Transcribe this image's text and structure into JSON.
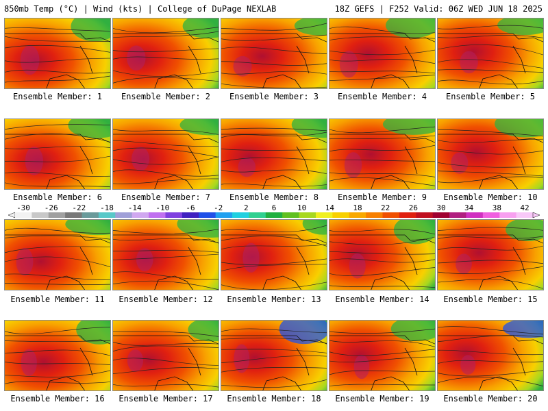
{
  "header": {
    "left": "850mb Temp (°C) | Wind (kts) | College of DuPage NEXLAB",
    "right": "18Z GEFS | F252 Valid: 06Z WED JUN 18 2025"
  },
  "panels": [
    {
      "label": "Ensemble Member: 1"
    },
    {
      "label": "Ensemble Member: 2"
    },
    {
      "label": "Ensemble Member: 3"
    },
    {
      "label": "Ensemble Member: 4"
    },
    {
      "label": "Ensemble Member: 5"
    },
    {
      "label": "Ensemble Member: 6"
    },
    {
      "label": "Ensemble Member: 7"
    },
    {
      "label": "Ensemble Member: 8"
    },
    {
      "label": "Ensemble Member: 9"
    },
    {
      "label": "Ensemble Member: 10"
    },
    {
      "label": "Ensemble Member: 11"
    },
    {
      "label": "Ensemble Member: 12"
    },
    {
      "label": "Ensemble Member: 13"
    },
    {
      "label": "Ensemble Member: 14"
    },
    {
      "label": "Ensemble Member: 15"
    },
    {
      "label": "Ensemble Member: 16"
    },
    {
      "label": "Ensemble Member: 17"
    },
    {
      "label": "Ensemble Member: 18"
    },
    {
      "label": "Ensemble Member: 19"
    },
    {
      "label": "Ensemble Member: 20"
    }
  ],
  "colorbar": {
    "labels": [
      "-30",
      "-26",
      "-22",
      "-18",
      "-14",
      "-10",
      "-6",
      "-2",
      "2",
      "6",
      "10",
      "14",
      "18",
      "22",
      "26",
      "30",
      "34",
      "38",
      "42"
    ],
    "colors": [
      "#f2f2f2",
      "#c8c8c8",
      "#a0a0a0",
      "#787878",
      "#6a9a9a",
      "#58c8c8",
      "#a0a0d8",
      "#d0a8f0",
      "#c070f0",
      "#8040e0",
      "#4020c0",
      "#2050e8",
      "#20a0f0",
      "#20d0e0",
      "#30d090",
      "#20b040",
      "#60c020",
      "#a8d820",
      "#f0f020",
      "#f8d000",
      "#f8a800",
      "#f88000",
      "#f05000",
      "#e02010",
      "#c01020",
      "#a00030",
      "#b02080",
      "#d030c0",
      "#f060e0",
      "#f8a0f0",
      "#f8c8f8"
    ]
  }
}
